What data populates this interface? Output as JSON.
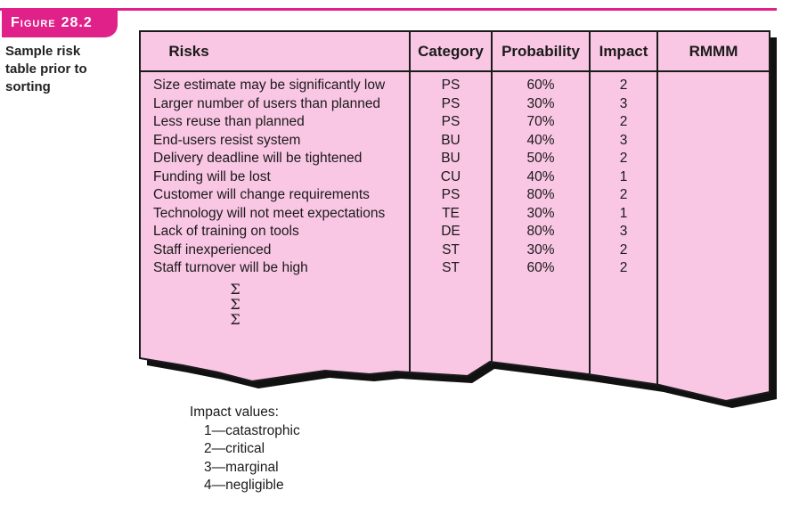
{
  "figure": {
    "label": "Figure",
    "number": "28.2"
  },
  "caption": [
    "Sample risk",
    "table prior to",
    "sorting"
  ],
  "table": {
    "headers": {
      "risks": "Risks",
      "category": "Category",
      "probability": "Probability",
      "impact": "Impact",
      "rmmm": "RMMM"
    },
    "rows": [
      {
        "risk": "Size estimate may be significantly low",
        "category": "PS",
        "probability": "60%",
        "impact": "2"
      },
      {
        "risk": "Larger number of users than planned",
        "category": "PS",
        "probability": "30%",
        "impact": "3"
      },
      {
        "risk": "Less reuse than planned",
        "category": "PS",
        "probability": "70%",
        "impact": "2"
      },
      {
        "risk": "End-users resist system",
        "category": "BU",
        "probability": "40%",
        "impact": "3"
      },
      {
        "risk": "Delivery deadline will be tightened",
        "category": "BU",
        "probability": "50%",
        "impact": "2"
      },
      {
        "risk": "Funding will be lost",
        "category": "CU",
        "probability": "40%",
        "impact": "1"
      },
      {
        "risk": "Customer will change requirements",
        "category": "PS",
        "probability": "80%",
        "impact": "2"
      },
      {
        "risk": "Technology will not meet expectations",
        "category": "TE",
        "probability": "30%",
        "impact": "1"
      },
      {
        "risk": "Lack of training on tools",
        "category": "DE",
        "probability": "80%",
        "impact": "3"
      },
      {
        "risk": "Staff inexperienced",
        "category": "ST",
        "probability": "30%",
        "impact": "2"
      },
      {
        "risk": "Staff turnover will be high",
        "category": "ST",
        "probability": "60%",
        "impact": "2"
      }
    ],
    "continuation": [
      "Σ",
      "Σ",
      "Σ"
    ]
  },
  "legend": {
    "title": "Impact values:",
    "items": [
      "1—catastrophic",
      "2—critical",
      "3—marginal",
      "4—negligible"
    ]
  },
  "colors": {
    "accent": "#e0218a",
    "table_fill": "#f9c6e4",
    "shadow": "#111111"
  }
}
